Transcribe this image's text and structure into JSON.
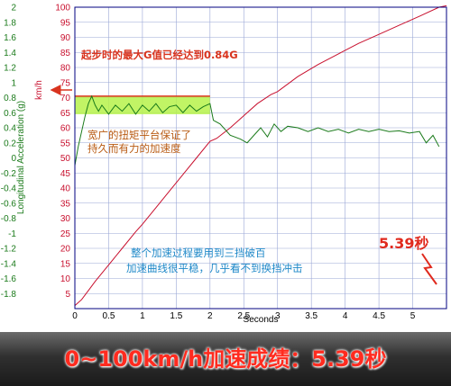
{
  "chart_data": {
    "type": "line",
    "xlabel": "Seconds",
    "ylabel_left": "Longitudinal Acceleration (g)",
    "ylabel_right": "km/h",
    "xlim": [
      0,
      5.5
    ],
    "y_left_lim": [
      -2,
      2
    ],
    "y_right_lim": [
      0,
      100
    ],
    "x_ticks": [
      "0",
      "0.5",
      "1",
      "1.5",
      "2",
      "2.5",
      "3",
      "3.5",
      "4",
      "4.5",
      "5"
    ],
    "y_left_ticks": [
      "2",
      "1.8",
      "1.6",
      "1.4",
      "1.2",
      "1",
      "0.8",
      "0.6",
      "0.4",
      "0.2",
      "0",
      "-0.2",
      "-0.4",
      "-0.6",
      "-0.8",
      "-1",
      "-1.2",
      "-1.4",
      "-1.6",
      "-1.8"
    ],
    "y_right_ticks": [
      "100",
      "95",
      "90",
      "85",
      "80",
      "75",
      "70",
      "65",
      "60",
      "55",
      "50",
      "45",
      "40",
      "35",
      "30",
      "25",
      "20",
      "15",
      "10",
      "5"
    ],
    "grid": true,
    "series": [
      {
        "name": "",
        "axis": "right",
        "color": "#c8102e",
        "x": [
          0,
          0.1,
          0.2,
          0.3,
          0.5,
          0.7,
          0.9,
          1.0,
          1.2,
          1.4,
          1.6,
          1.8,
          2.0,
          2.1,
          2.3,
          2.5,
          2.7,
          2.9,
          3.0,
          3.3,
          3.6,
          3.9,
          4.2,
          4.5,
          4.8,
          5.1,
          5.39,
          5.5
        ],
        "y": [
          1,
          3,
          6,
          9,
          14.5,
          20,
          25.5,
          28,
          33.5,
          39,
          44.5,
          50,
          55.5,
          56.5,
          60,
          64,
          68,
          71,
          72,
          77,
          81,
          84.5,
          88,
          91,
          94,
          97,
          100,
          100.5
        ]
      },
      {
        "name": "",
        "axis": "left",
        "color": "#1a7a1a",
        "x": [
          0,
          0.05,
          0.1,
          0.15,
          0.2,
          0.25,
          0.3,
          0.35,
          0.4,
          0.5,
          0.6,
          0.7,
          0.8,
          0.9,
          1.0,
          1.1,
          1.2,
          1.3,
          1.4,
          1.5,
          1.6,
          1.7,
          1.8,
          1.9,
          2.0,
          2.05,
          2.15,
          2.3,
          2.45,
          2.55,
          2.65,
          2.75,
          2.85,
          2.95,
          3.05,
          3.15,
          3.3,
          3.45,
          3.6,
          3.75,
          3.9,
          4.05,
          4.2,
          4.35,
          4.5,
          4.65,
          4.8,
          4.95,
          5.1,
          5.2,
          5.3,
          5.39
        ],
        "y": [
          -0.1,
          0.15,
          0.35,
          0.55,
          0.72,
          0.82,
          0.7,
          0.62,
          0.7,
          0.58,
          0.7,
          0.62,
          0.72,
          0.58,
          0.7,
          0.62,
          0.72,
          0.6,
          0.68,
          0.7,
          0.6,
          0.7,
          0.62,
          0.68,
          0.72,
          0.5,
          0.45,
          0.3,
          0.25,
          0.2,
          0.3,
          0.4,
          0.28,
          0.45,
          0.35,
          0.42,
          0.4,
          0.35,
          0.4,
          0.35,
          0.38,
          0.33,
          0.38,
          0.35,
          0.38,
          0.35,
          0.36,
          0.33,
          0.35,
          0.2,
          0.3,
          0.15
        ]
      }
    ],
    "annotations": {
      "peak_g": "起步时的最大G值已经达到0.84G",
      "plateau_line1": "宽广的扭矩平台保证了",
      "plateau_line2": "持久而有力的加速度",
      "summary_line1": "整个加速过程要用到三挡破百",
      "summary_line2": "加速曲线很平稳，几乎看不到换挡冲击",
      "time": "5.39秒"
    },
    "colors": {
      "plot_border": "#000080",
      "grid": "#9aa7d6",
      "speed": "#c8102e",
      "accel": "#1a7a1a",
      "highlight": "#b6f24a",
      "annotation_red": "#d9341f",
      "annotation_orange": "#b85a12",
      "annotation_blue": "#1e88c8"
    }
  },
  "banner": {
    "text": "0~100km/h加速成绩：5.39秒"
  }
}
